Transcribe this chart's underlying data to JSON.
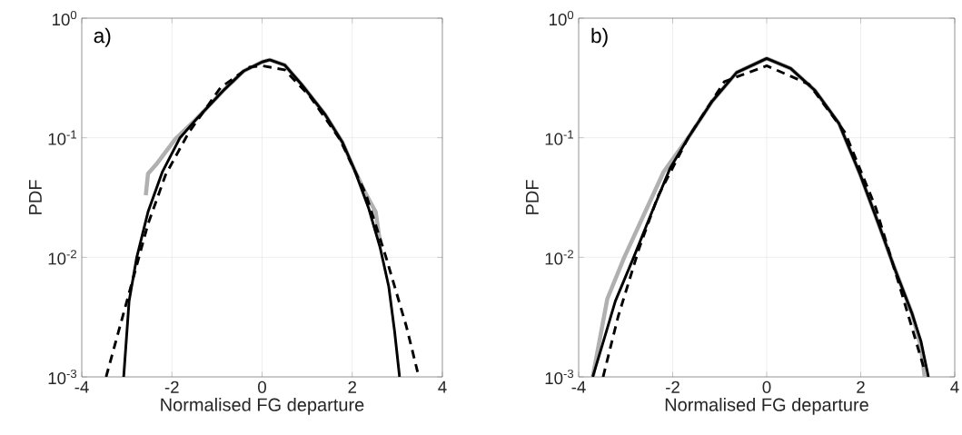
{
  "chart_data": [
    {
      "type": "line",
      "xlabel": "Normalised FG departure",
      "ylabel": "PDF",
      "annotations": [
        "a)"
      ],
      "log": "y",
      "grid": true,
      "xlim": [
        -4,
        4
      ],
      "ylim": [
        0.001,
        1
      ],
      "xticks": [
        -4,
        -2,
        0,
        2,
        4
      ],
      "yticks": [
        {
          "value": 0.001,
          "label": "10$^{-3}$"
        },
        {
          "value": 0.01,
          "label": "10$^{-2}$"
        },
        {
          "value": 0.1,
          "label": "10$^{-1}$"
        },
        {
          "value": 1,
          "label": "10$^{0}$"
        }
      ],
      "series": [
        {
          "color": "#b0b0b0",
          "line_style": "solid",
          "x": [
            -2.58,
            -2.53,
            -2.33,
            -1.92,
            -1.43,
            -0.86,
            -0.41,
            0,
            0.17,
            0.5,
            0.88,
            1.4,
            1.78,
            2.04,
            2.3,
            2.52,
            2.59,
            2.62
          ],
          "values": [
            0.033,
            0.05,
            0.061,
            0.098,
            0.147,
            0.248,
            0.361,
            0.43,
            0.448,
            0.406,
            0.278,
            0.156,
            0.092,
            0.055,
            0.034,
            0.024,
            0.0156,
            0.0135
          ]
        },
        {
          "color": "#000000",
          "line_style": "solid",
          "x": [
            -3.07,
            -2.95,
            -2.78,
            -2.53,
            -2.21,
            -1.82,
            -1.43,
            -0.86,
            -0.41,
            0,
            0.17,
            0.5,
            0.88,
            1.4,
            1.78,
            2.04,
            2.36,
            2.62,
            2.81,
            2.94,
            3.05
          ],
          "values": [
            0.001,
            0.0043,
            0.01,
            0.024,
            0.052,
            0.1,
            0.147,
            0.248,
            0.361,
            0.43,
            0.448,
            0.406,
            0.278,
            0.156,
            0.092,
            0.055,
            0.026,
            0.012,
            0.0057,
            0.0024,
            0.001
          ]
        },
        {
          "color": "#000000",
          "line_style": "dashed",
          "x": [
            -3.46,
            -2.91,
            -2.53,
            -2.14,
            -1.63,
            -0.92,
            -0.28,
            0,
            0.5,
            1.07,
            1.72,
            2.3,
            2.75,
            3.2,
            3.45
          ],
          "values": [
            0.001,
            0.0057,
            0.019,
            0.049,
            0.11,
            0.263,
            0.39,
            0.4,
            0.37,
            0.22,
            0.098,
            0.034,
            0.01,
            0.00265,
            0.0011
          ]
        }
      ]
    },
    {
      "type": "line",
      "xlabel": "Normalised FG departure",
      "ylabel": "PDF",
      "annotations": [
        "b)"
      ],
      "log": "y",
      "grid": true,
      "xlim": [
        -4,
        4
      ],
      "ylim": [
        0.001,
        1
      ],
      "xticks": [
        -4,
        -2,
        0,
        2,
        4
      ],
      "yticks": [
        {
          "value": 0.001,
          "label": "10$^{-3}$"
        },
        {
          "value": 0.01,
          "label": "10$^{-2}$"
        },
        {
          "value": 0.1,
          "label": "10$^{-1}$"
        },
        {
          "value": 1,
          "label": "10$^{0}$"
        }
      ],
      "series": [
        {
          "color": "#b0b0b0",
          "line_style": "solid",
          "x": [
            -3.7,
            -3.39,
            -3.03,
            -2.64,
            -2.19,
            -1.67,
            -1.16,
            -0.64,
            0,
            0.51,
            1.03,
            1.54,
            1.99,
            2.38,
            2.7,
            3.09,
            3.28,
            3.36
          ],
          "values": [
            0.001,
            0.0045,
            0.01,
            0.0215,
            0.052,
            0.1,
            0.202,
            0.351,
            0.46,
            0.38,
            0.248,
            0.131,
            0.049,
            0.019,
            0.0085,
            0.0034,
            0.0018,
            0.001
          ]
        },
        {
          "color": "#000000",
          "line_style": "solid",
          "x": [
            -3.7,
            -3.41,
            -3.22,
            -2.83,
            -2.44,
            -2.06,
            -1.67,
            -1.16,
            -0.64,
            0,
            0.51,
            1.03,
            1.54,
            1.99,
            2.38,
            2.7,
            3.09,
            3.28,
            3.44
          ],
          "values": [
            0.001,
            0.0024,
            0.0043,
            0.01,
            0.024,
            0.055,
            0.1,
            0.202,
            0.351,
            0.46,
            0.38,
            0.248,
            0.131,
            0.049,
            0.019,
            0.0085,
            0.0034,
            0.002,
            0.001
          ]
        },
        {
          "color": "#000000",
          "line_style": "dashed",
          "x": [
            -3.48,
            -3.16,
            -2.71,
            -2.32,
            -1.67,
            -0.9,
            0,
            0.9,
            1.67,
            2.32,
            2.83,
            3.34
          ],
          "values": [
            0.001,
            0.0032,
            0.012,
            0.032,
            0.1,
            0.295,
            0.4,
            0.28,
            0.11,
            0.026,
            0.0057,
            0.0012
          ]
        }
      ]
    }
  ]
}
